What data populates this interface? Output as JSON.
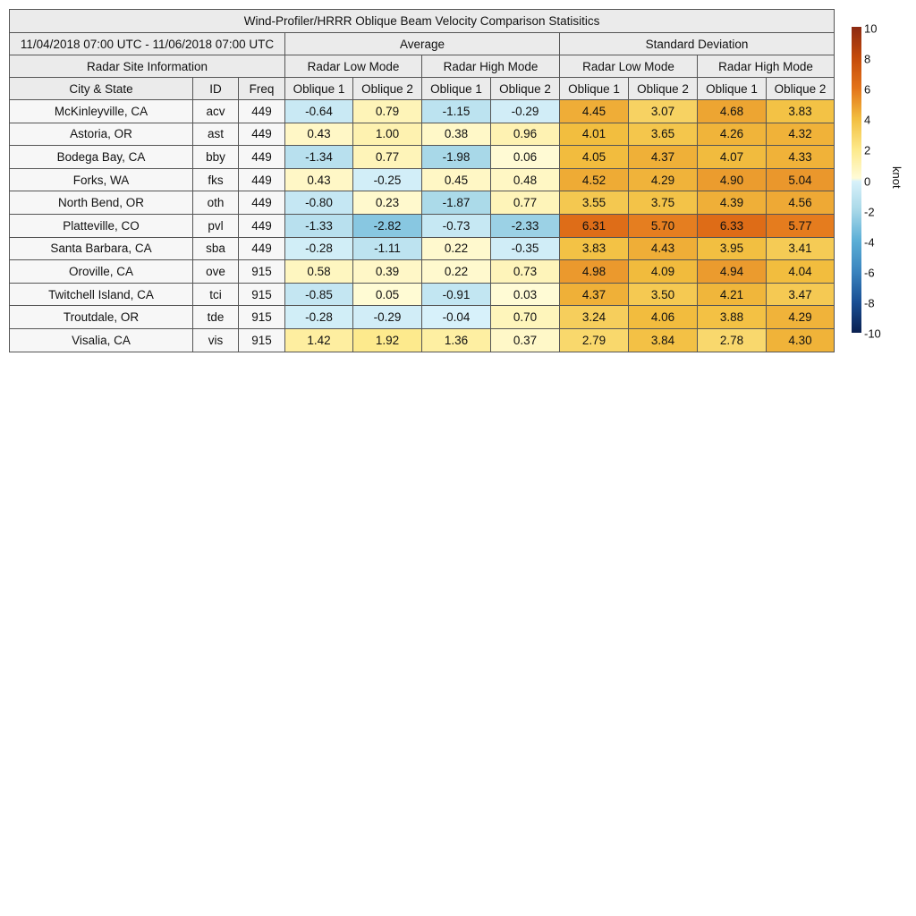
{
  "chart_data": {
    "type": "table",
    "title": "Wind-Profiler/HRRR Oblique Beam Velocity Comparison Statisitics",
    "period": "11/04/2018 07:00 UTC - 11/06/2018 07:00 UTC",
    "groups": [
      "Average",
      "Standard Deviation"
    ],
    "site_info_label": "Radar Site Information",
    "modes": [
      "Radar Low Mode",
      "Radar High Mode"
    ],
    "columns": [
      "City & State",
      "ID",
      "Freq",
      "Oblique 1",
      "Oblique 2",
      "Oblique 1",
      "Oblique 2",
      "Oblique 1",
      "Oblique 2",
      "Oblique 1",
      "Oblique 2"
    ],
    "rows": [
      {
        "city": "McKinleyville, CA",
        "id": "acv",
        "freq": "449",
        "values": [
          "-0.64",
          "0.79",
          "-1.15",
          "-0.29",
          "4.45",
          "3.07",
          "4.68",
          "3.83"
        ]
      },
      {
        "city": "Astoria, OR",
        "id": "ast",
        "freq": "449",
        "values": [
          "0.43",
          "1.00",
          "0.38",
          "0.96",
          "4.01",
          "3.65",
          "4.26",
          "4.32"
        ]
      },
      {
        "city": "Bodega Bay, CA",
        "id": "bby",
        "freq": "449",
        "values": [
          "-1.34",
          "0.77",
          "-1.98",
          "0.06",
          "4.05",
          "4.37",
          "4.07",
          "4.33"
        ]
      },
      {
        "city": "Forks, WA",
        "id": "fks",
        "freq": "449",
        "values": [
          "0.43",
          "-0.25",
          "0.45",
          "0.48",
          "4.52",
          "4.29",
          "4.90",
          "5.04"
        ]
      },
      {
        "city": "North Bend, OR",
        "id": "oth",
        "freq": "449",
        "values": [
          "-0.80",
          "0.23",
          "-1.87",
          "0.77",
          "3.55",
          "3.75",
          "4.39",
          "4.56"
        ]
      },
      {
        "city": "Platteville, CO",
        "id": "pvl",
        "freq": "449",
        "values": [
          "-1.33",
          "-2.82",
          "-0.73",
          "-2.33",
          "6.31",
          "5.70",
          "6.33",
          "5.77"
        ]
      },
      {
        "city": "Santa Barbara, CA",
        "id": "sba",
        "freq": "449",
        "values": [
          "-0.28",
          "-1.11",
          "0.22",
          "-0.35",
          "3.83",
          "4.43",
          "3.95",
          "3.41"
        ]
      },
      {
        "city": "Oroville, CA",
        "id": "ove",
        "freq": "915",
        "values": [
          "0.58",
          "0.39",
          "0.22",
          "0.73",
          "4.98",
          "4.09",
          "4.94",
          "4.04"
        ]
      },
      {
        "city": "Twitchell Island, CA",
        "id": "tci",
        "freq": "915",
        "values": [
          "-0.85",
          "0.05",
          "-0.91",
          "0.03",
          "4.37",
          "3.50",
          "4.21",
          "3.47"
        ]
      },
      {
        "city": "Troutdale, OR",
        "id": "tde",
        "freq": "915",
        "values": [
          "-0.28",
          "-0.29",
          "-0.04",
          "0.70",
          "3.24",
          "4.06",
          "3.88",
          "4.29"
        ]
      },
      {
        "city": "Visalia, CA",
        "id": "vis",
        "freq": "915",
        "values": [
          "1.42",
          "1.92",
          "1.36",
          "0.37",
          "2.79",
          "3.84",
          "2.78",
          "4.30"
        ]
      }
    ],
    "colorbar": {
      "label": "knot",
      "range": [
        -10,
        10
      ],
      "ticks": [
        "10",
        "8",
        "6",
        "4",
        "2",
        "0",
        "-2",
        "-4",
        "-6",
        "-8",
        "-10"
      ],
      "colors": {
        "max": "#8c2a12",
        "zero_pos": "#fffbd8",
        "zero_neg": "#d8f1fa",
        "min": "#0a2050"
      }
    }
  }
}
